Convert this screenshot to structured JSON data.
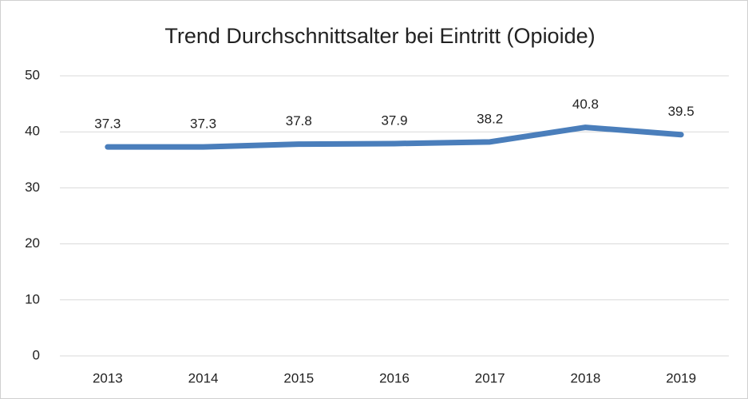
{
  "chart_data": {
    "type": "line",
    "title": "Trend Durchschnittsalter bei Eintritt (Opioide)",
    "categories": [
      "2013",
      "2014",
      "2015",
      "2016",
      "2017",
      "2018",
      "2019"
    ],
    "values": [
      37.3,
      37.3,
      37.8,
      37.9,
      38.2,
      40.8,
      39.5
    ],
    "color": "#4a7ebb",
    "ylim": [
      0,
      50
    ],
    "yticks": [
      0,
      10,
      20,
      30,
      40,
      50
    ],
    "grid": true
  }
}
